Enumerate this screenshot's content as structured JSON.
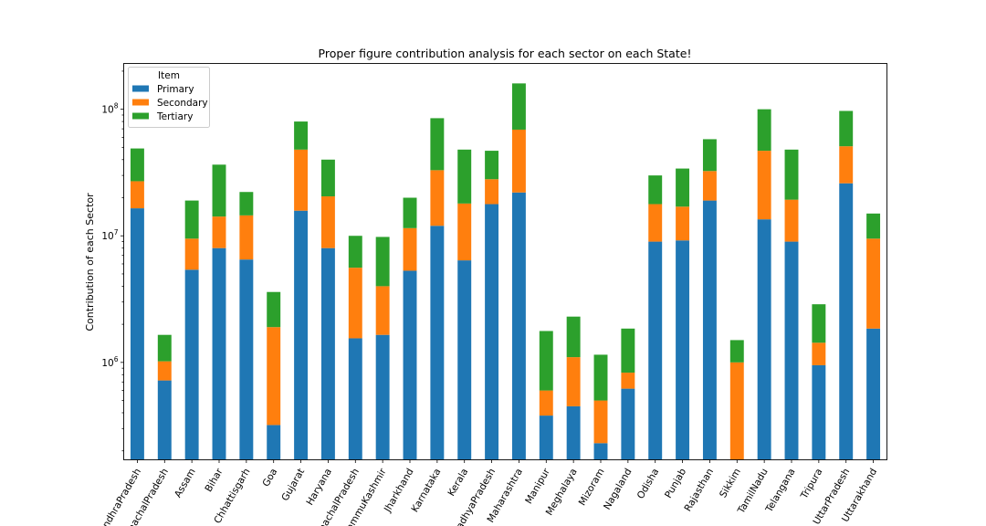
{
  "chart_data": {
    "type": "bar",
    "stacked": true,
    "title": "Proper figure contribution analysis for each sector on each State!",
    "xlabel": "",
    "ylabel": "Contribution of each Sector",
    "yscale": "log",
    "ylim": [
      170000,
      230000000
    ],
    "y_tick_labels": [
      "10^6",
      "10^7",
      "10^8"
    ],
    "legend": {
      "title": "Item",
      "position": "top-left"
    },
    "categories": [
      "AndhraPradesh",
      "ArunachalPradesh",
      "Assam",
      "Bihar",
      "Chhattisgarh",
      "Goa",
      "Gujarat",
      "Haryana",
      "HimachalPradesh",
      "JammuKashmir",
      "Jharkhand",
      "Karnataka",
      "Kerala",
      "MadhyaPradesh",
      "Maharashtra",
      "Manipur",
      "Meghalaya",
      "Mizoram",
      "Nagaland",
      "Odisha",
      "Punjab",
      "Rajasthan",
      "Sikkim",
      "TamilNadu",
      "Telangana",
      "Tripura",
      "UttarPradesh",
      "Uttarakhand"
    ],
    "series": [
      {
        "name": "Primary",
        "color": "#1f77b4",
        "values": [
          16500000,
          720000,
          5400000,
          8000000,
          6500000,
          320000,
          15800000,
          8000000,
          1550000,
          1650000,
          5300000,
          12000000,
          6400000,
          17800000,
          22000000,
          380000,
          450000,
          230000,
          620000,
          9000000,
          9200000,
          19000000,
          0,
          13500000,
          9000000,
          950000,
          26000000,
          1850000
        ]
      },
      {
        "name": "Secondary",
        "color": "#ff7f0e",
        "values": [
          10500000,
          300000,
          4100000,
          6200000,
          8000000,
          1580000,
          32200000,
          12500000,
          4050000,
          2350000,
          6200000,
          21000000,
          11600000,
          10200000,
          47000000,
          220000,
          650000,
          270000,
          210000,
          8800000,
          7800000,
          13500000,
          1000000,
          33500000,
          10300000,
          480000,
          25000000,
          7650000
        ]
      },
      {
        "name": "Tertiary",
        "color": "#2ca02c",
        "values": [
          22000000,
          630000,
          9500000,
          22300000,
          7700000,
          1700000,
          32000000,
          19500000,
          4400000,
          5800000,
          8500000,
          52000000,
          30000000,
          19000000,
          91000000,
          1170000,
          1200000,
          650000,
          1020000,
          12200000,
          17000000,
          25500000,
          500000,
          53000000,
          28700000,
          1450000,
          46000000,
          5500000
        ]
      }
    ]
  }
}
